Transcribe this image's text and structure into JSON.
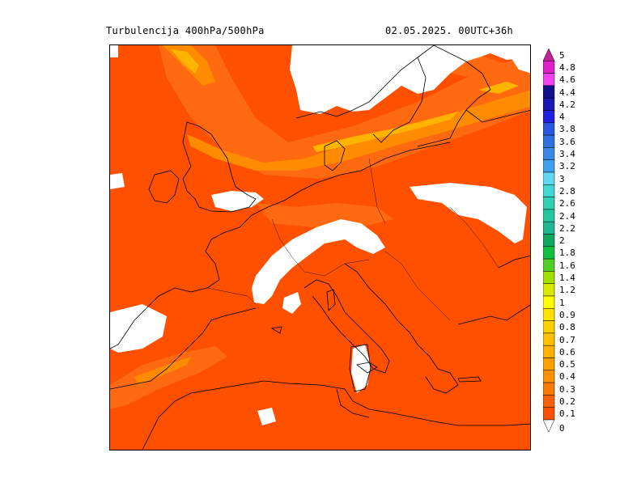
{
  "header": {
    "title": "Turbulencija 400hPa/500hPa",
    "run_info": "02.05.2025.   00UTC+36h"
  },
  "legend": {
    "labels": [
      "5",
      "4.8",
      "4.6",
      "4.4",
      "4.2",
      "4",
      "3.8",
      "3.6",
      "3.4",
      "3.2",
      "3",
      "2.8",
      "2.6",
      "2.4",
      "2.2",
      "2",
      "1.8",
      "1.6",
      "1.4",
      "1.2",
      "1",
      "0.9",
      "0.8",
      "0.7",
      "0.6",
      "0.5",
      "0.4",
      "0.3",
      "0.2",
      "0.1",
      "0"
    ],
    "colors": [
      "#c0229a",
      "#e020c8",
      "#f040f0",
      "#10108c",
      "#1818b4",
      "#2020e0",
      "#2858e0",
      "#3070e0",
      "#3888e8",
      "#40a0f0",
      "#60d8f0",
      "#40d8d0",
      "#30d0b0",
      "#20c8a0",
      "#20b890",
      "#10a860",
      "#10c040",
      "#50d020",
      "#a0e000",
      "#d8e800",
      "#ffff00",
      "#ffe000",
      "#ffd000",
      "#ffc000",
      "#ffb000",
      "#ffa000",
      "#ff9000",
      "#ff7800",
      "#ff6000",
      "#ff5000",
      "#ffffff"
    ]
  },
  "map": {
    "region": "Europe",
    "field_colors": {
      "background": "#ff5000",
      "band_light": "#ff6a10",
      "band_mid": "#ff8c00",
      "band_core": "#ffb400",
      "no_data": "#ffffff",
      "coastline": "#000000"
    }
  }
}
